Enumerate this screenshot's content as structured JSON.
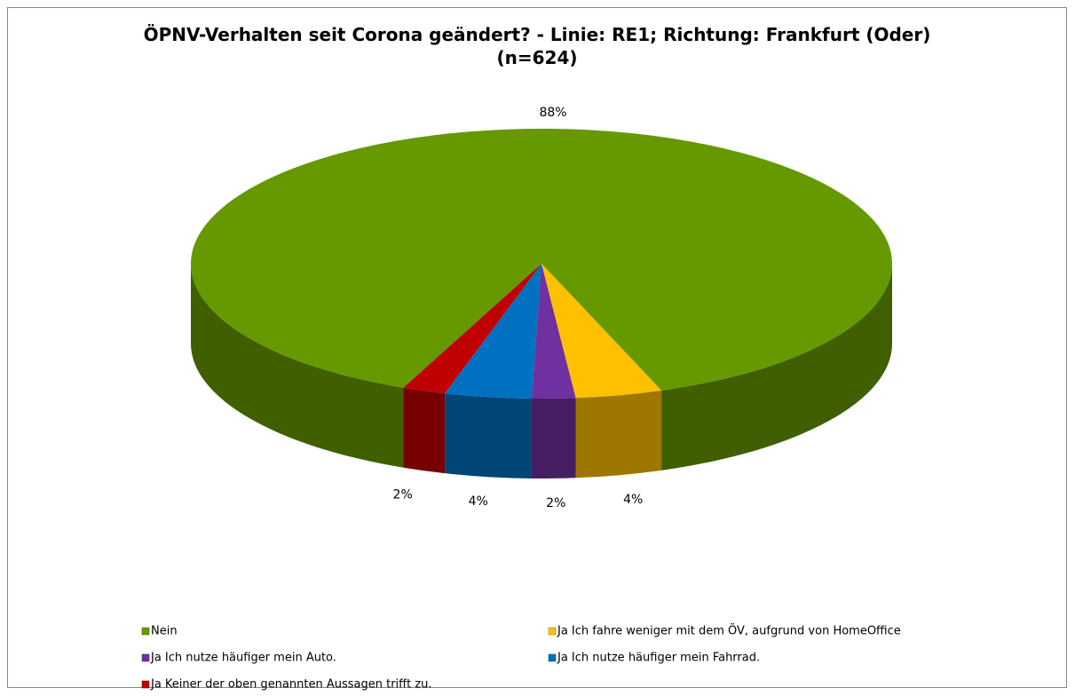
{
  "chart_data": {
    "type": "pie",
    "title": "ÖPNV-Verhalten seit Corona geändert? - Linie: RE1; Richtung: Frankfurt (Oder) (n=624)",
    "categories": [
      "Nein",
      "Ja Ich fahre weniger mit dem ÖV, aufgrund von HomeOffice",
      "Ja Ich nutze häufiger mein Auto.",
      "Ja Ich nutze häufiger mein Fahrrad.",
      "Ja Keiner der oben genannten Aussagen trifft zu."
    ],
    "values": [
      88,
      4,
      2,
      4,
      2
    ],
    "value_labels": [
      "88%",
      "4%",
      "2%",
      "4%",
      "2%"
    ],
    "colors": [
      "#669900",
      "#ffc000",
      "#7030a0",
      "#0070c0",
      "#c00000"
    ],
    "legend": "bottom"
  }
}
